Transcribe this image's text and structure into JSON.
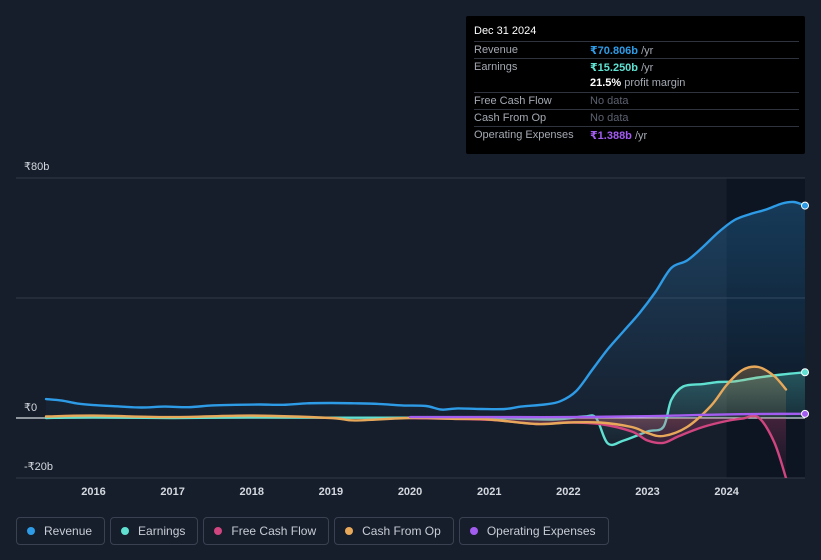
{
  "tooltip": {
    "date": "Dec 31 2024",
    "rows": [
      {
        "label": "Revenue",
        "value": "₹70.806b",
        "unit": " /yr",
        "color": "#2e9be6"
      },
      {
        "label": "Earnings",
        "value": "₹15.250b",
        "unit": " /yr",
        "color": "#5fe0d1"
      },
      {
        "label": "",
        "value": "21.5%",
        "unit": " profit margin",
        "color": "#ffffff"
      },
      {
        "label": "Free Cash Flow",
        "value": "No data",
        "unit": "",
        "color": "#5c6270"
      },
      {
        "label": "Cash From Op",
        "value": "No data",
        "unit": "",
        "color": "#5c6270"
      },
      {
        "label": "Operating Expenses",
        "value": "₹1.388b",
        "unit": " /yr",
        "color": "#a35cf0"
      }
    ]
  },
  "legend": [
    {
      "label": "Revenue",
      "color": "#2e9be6"
    },
    {
      "label": "Earnings",
      "color": "#5fe0d1"
    },
    {
      "label": "Free Cash Flow",
      "color": "#d0457f"
    },
    {
      "label": "Cash From Op",
      "color": "#e8a85a"
    },
    {
      "label": "Operating Expenses",
      "color": "#a35cf0"
    }
  ],
  "chart_data": {
    "type": "line",
    "y_ticks": [
      {
        "value": 80,
        "label": "₹80b"
      },
      {
        "value": 0,
        "label": "₹0"
      },
      {
        "value": -20,
        "label": "-₹20b"
      }
    ],
    "ylim": [
      -20,
      80
    ],
    "xlim": [
      2015.4,
      2024.99
    ],
    "x_ticks": [
      {
        "value": 2016,
        "label": "2016"
      },
      {
        "value": 2017,
        "label": "2017"
      },
      {
        "value": 2018,
        "label": "2018"
      },
      {
        "value": 2019,
        "label": "2019"
      },
      {
        "value": 2020,
        "label": "2020"
      },
      {
        "value": 2021,
        "label": "2021"
      },
      {
        "value": 2022,
        "label": "2022"
      },
      {
        "value": 2023,
        "label": "2023"
      },
      {
        "value": 2024,
        "label": "2024"
      }
    ],
    "highlight_start": 2024.0,
    "grid": true,
    "series": [
      {
        "name": "Revenue",
        "color": "#2e9be6",
        "area": true,
        "end_marker": true,
        "x": [
          2015.4,
          2015.6,
          2015.8,
          2016.0,
          2016.3,
          2016.6,
          2016.9,
          2017.2,
          2017.5,
          2017.8,
          2018.1,
          2018.4,
          2018.7,
          2019.0,
          2019.3,
          2019.6,
          2019.9,
          2020.2,
          2020.4,
          2020.6,
          2020.9,
          2021.2,
          2021.4,
          2021.7,
          2021.9,
          2022.1,
          2022.3,
          2022.5,
          2022.7,
          2022.9,
          2023.1,
          2023.3,
          2023.5,
          2023.7,
          2023.9,
          2024.1,
          2024.3,
          2024.5,
          2024.7,
          2024.85,
          2024.99
        ],
        "y": [
          6.3,
          5.8,
          4.8,
          4.3,
          3.9,
          3.5,
          3.8,
          3.6,
          4.2,
          4.4,
          4.5,
          4.4,
          4.9,
          5.0,
          4.9,
          4.7,
          4.2,
          4.0,
          2.8,
          3.2,
          3.0,
          3.0,
          3.8,
          4.5,
          5.6,
          9.0,
          16.0,
          23.0,
          29.0,
          35.0,
          42.0,
          50.0,
          52.5,
          57.0,
          62.0,
          66.0,
          68.0,
          69.5,
          71.5,
          72.0,
          70.8
        ]
      },
      {
        "name": "Earnings",
        "color": "#5fe0d1",
        "area": true,
        "end_marker": true,
        "x": [
          2015.4,
          2016.0,
          2017.0,
          2018.0,
          2019.0,
          2020.0,
          2021.0,
          2021.8,
          2022.2,
          2022.35,
          2022.5,
          2022.7,
          2023.0,
          2023.2,
          2023.3,
          2023.45,
          2023.7,
          2023.9,
          2024.1,
          2024.4,
          2024.7,
          2024.99
        ],
        "y": [
          0.0,
          0.2,
          0.0,
          0.2,
          0.1,
          0.1,
          0.0,
          -0.5,
          0.5,
          0.0,
          -8.5,
          -7.5,
          -4.5,
          -3.0,
          6.0,
          10.5,
          11.3,
          12.0,
          12.2,
          13.5,
          14.5,
          15.25
        ]
      },
      {
        "name": "Free Cash Flow",
        "color": "#d0457f",
        "area": true,
        "end_marker": false,
        "x": [
          2020.0,
          2021.0,
          2021.6,
          2022.0,
          2022.4,
          2022.8,
          2023.0,
          2023.2,
          2023.4,
          2023.7,
          2024.0,
          2024.2,
          2024.4,
          2024.6,
          2024.75
        ],
        "y": [
          0.0,
          -0.6,
          -2.0,
          -1.5,
          -2.0,
          -4.5,
          -7.5,
          -8.3,
          -6.0,
          -3.0,
          -1.0,
          -0.2,
          0.2,
          -8.0,
          -20.0
        ]
      },
      {
        "name": "Cash From Op",
        "color": "#e8a85a",
        "area": true,
        "end_marker": false,
        "x": [
          2015.4,
          2016.0,
          2017.0,
          2018.0,
          2019.0,
          2019.3,
          2020.0,
          2020.6,
          2021.0,
          2021.6,
          2022.0,
          2022.4,
          2022.8,
          2023.0,
          2023.2,
          2023.5,
          2023.8,
          2024.0,
          2024.2,
          2024.4,
          2024.6,
          2024.75
        ],
        "y": [
          0.5,
          0.8,
          0.3,
          0.8,
          0.0,
          -0.8,
          0.0,
          -0.3,
          -0.5,
          -2.0,
          -1.5,
          -1.5,
          -3.0,
          -5.0,
          -6.0,
          -3.0,
          4.0,
          11.0,
          16.0,
          17.0,
          14.0,
          9.5
        ]
      },
      {
        "name": "Operating Expenses",
        "color": "#a35cf0",
        "area": false,
        "end_marker": true,
        "x": [
          2020.0,
          2021.0,
          2022.0,
          2023.0,
          2023.5,
          2024.0,
          2024.5,
          2024.99
        ],
        "y": [
          0.3,
          0.3,
          0.3,
          0.6,
          0.9,
          1.2,
          1.35,
          1.388
        ]
      }
    ]
  }
}
